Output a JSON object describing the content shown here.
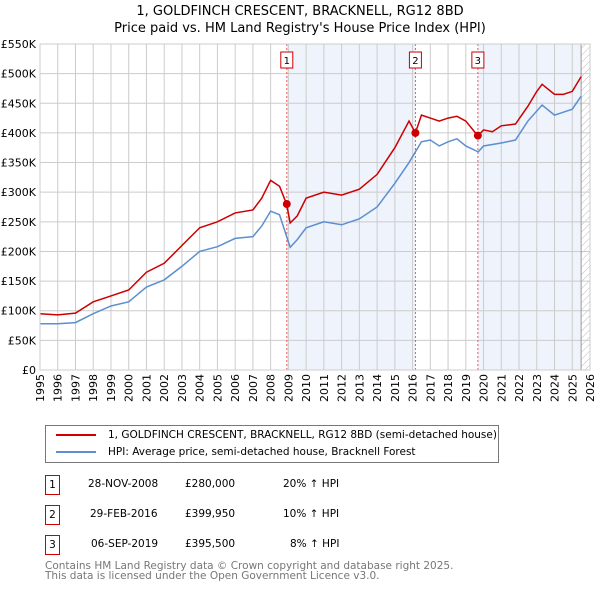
{
  "chart_data": {
    "type": "line",
    "title": "1, GOLDFINCH CRESCENT, BRACKNELL, RG12 8BD",
    "subtitle": "Price paid vs. HM Land Registry's House Price Index (HPI)",
    "xlim": [
      1995,
      2026
    ],
    "ylim": [
      0,
      550000
    ],
    "x_ticks": [
      "1995",
      "1996",
      "1997",
      "1998",
      "1999",
      "2000",
      "2001",
      "2002",
      "2003",
      "2004",
      "2005",
      "2006",
      "2007",
      "2008",
      "2009",
      "2010",
      "2011",
      "2012",
      "2013",
      "2014",
      "2015",
      "2016",
      "2017",
      "2018",
      "2019",
      "2020",
      "2021",
      "2022",
      "2023",
      "2024",
      "2025",
      "2026"
    ],
    "y_ticks": [
      {
        "v": 0,
        "l": "£0"
      },
      {
        "v": 50000,
        "l": "£50K"
      },
      {
        "v": 100000,
        "l": "£100K"
      },
      {
        "v": 150000,
        "l": "£150K"
      },
      {
        "v": 200000,
        "l": "£200K"
      },
      {
        "v": 250000,
        "l": "£250K"
      },
      {
        "v": 300000,
        "l": "£300K"
      },
      {
        "v": 350000,
        "l": "£350K"
      },
      {
        "v": 400000,
        "l": "£400K"
      },
      {
        "v": 450000,
        "l": "£450K"
      },
      {
        "v": 500000,
        "l": "£500K"
      },
      {
        "v": 550000,
        "l": "£550K"
      }
    ],
    "grid": true,
    "series": [
      {
        "name": "1, GOLDFINCH CRESCENT, BRACKNELL, RG12 8BD (semi-detached house)",
        "color": "#cc0000",
        "x": [
          1995,
          1996,
          1997,
          1998,
          1999,
          2000,
          2001,
          2002,
          2003,
          2004,
          2005,
          2006,
          2007,
          2007.5,
          2008,
          2008.5,
          2008.9,
          2009.1,
          2009.5,
          2010,
          2011,
          2012,
          2013,
          2014,
          2015,
          2015.8,
          2016.16,
          2016.5,
          2017,
          2017.5,
          2018,
          2018.5,
          2019,
          2019.68,
          2020,
          2020.5,
          2021,
          2021.8,
          2022.5,
          2023,
          2023.3,
          2024,
          2024.5,
          2025,
          2025.5
        ],
        "y": [
          95000,
          93000,
          96000,
          115000,
          125000,
          135000,
          165000,
          180000,
          210000,
          240000,
          250000,
          265000,
          270000,
          290000,
          320000,
          310000,
          280000,
          248000,
          260000,
          290000,
          300000,
          295000,
          305000,
          330000,
          375000,
          420000,
          400000,
          430000,
          425000,
          420000,
          425000,
          428000,
          420000,
          395000,
          405000,
          402000,
          412000,
          415000,
          445000,
          470000,
          482000,
          465000,
          465000,
          470000,
          495000
        ]
      },
      {
        "name": "HPI: Average price, semi-detached house, Bracknell Forest",
        "color": "#5b8fd0",
        "x": [
          1995,
          1996,
          1997,
          1998,
          1999,
          2000,
          2001,
          2002,
          2003,
          2004,
          2005,
          2006,
          2007,
          2007.5,
          2008,
          2008.5,
          2009.1,
          2009.5,
          2010,
          2011,
          2012,
          2013,
          2014,
          2015,
          2015.8,
          2016.5,
          2017,
          2017.5,
          2018,
          2018.5,
          2019,
          2019.7,
          2020,
          2021,
          2021.8,
          2022.5,
          2023.3,
          2024,
          2024.5,
          2025,
          2025.5
        ],
        "y": [
          78000,
          78000,
          80000,
          95000,
          108000,
          115000,
          140000,
          152000,
          175000,
          200000,
          208000,
          222000,
          225000,
          243000,
          268000,
          262000,
          207000,
          220000,
          240000,
          250000,
          245000,
          255000,
          275000,
          315000,
          350000,
          385000,
          388000,
          378000,
          385000,
          390000,
          378000,
          368000,
          378000,
          383000,
          388000,
          420000,
          447000,
          430000,
          435000,
          440000,
          462000
        ]
      }
    ],
    "sales": [
      {
        "n": "1",
        "x": 2008.91,
        "y": 280000,
        "date": "28-NOV-2008",
        "price": "£280,000",
        "hpi": "20% ↑ HPI"
      },
      {
        "n": "2",
        "x": 2016.16,
        "y": 399950,
        "date": "29-FEB-2016",
        "price": "£399,950",
        "hpi": "10% ↑ HPI"
      },
      {
        "n": "3",
        "x": 2019.68,
        "y": 395500,
        "date": "06-SEP-2019",
        "price": "£395,500",
        "hpi": "8% ↑ HPI"
      }
    ],
    "shaded": [
      [
        2008.91,
        2016.16
      ],
      [
        2019.68,
        2025.5
      ]
    ],
    "hatched_from": 2025.5,
    "legend_placement": "below"
  },
  "footer": {
    "line1": "Contains HM Land Registry data © Crown copyright and database right 2025.",
    "line2": "This data is licensed under the Open Government Licence v3.0."
  }
}
